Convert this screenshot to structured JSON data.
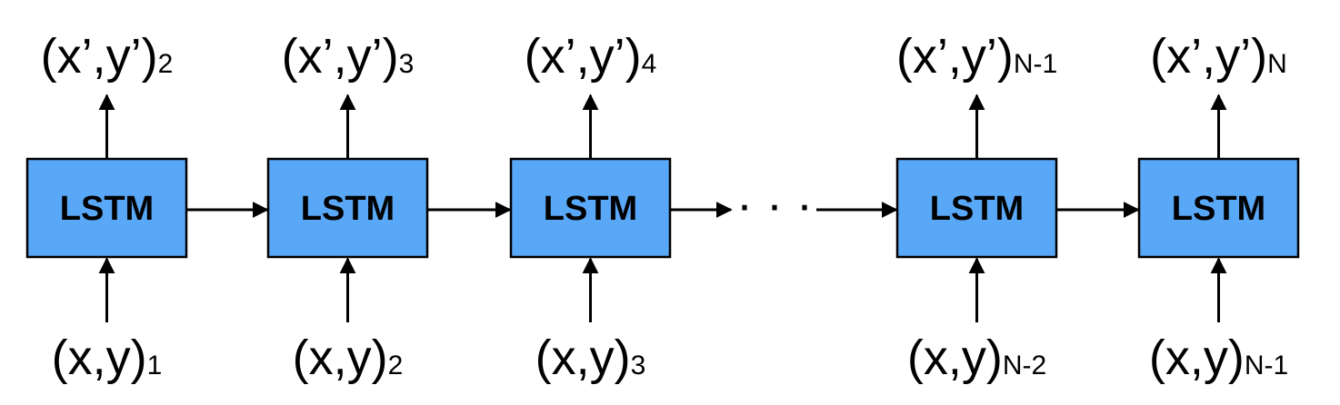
{
  "units": [
    {
      "label": "LSTM",
      "input": {
        "base": "(x,y)",
        "sub": "1"
      },
      "output": {
        "base": "(x’,y’)",
        "sub": "2"
      }
    },
    {
      "label": "LSTM",
      "input": {
        "base": "(x,y)",
        "sub": "2"
      },
      "output": {
        "base": "(x’,y’)",
        "sub": "3"
      }
    },
    {
      "label": "LSTM",
      "input": {
        "base": "(x,y)",
        "sub": "3"
      },
      "output": {
        "base": "(x’,y’)",
        "sub": "4"
      }
    },
    {
      "label": "LSTM",
      "input": {
        "base": "(x,y)",
        "sub": "N-2"
      },
      "output": {
        "base": "(x’,y’)",
        "sub": "N-1"
      }
    },
    {
      "label": "LSTM",
      "input": {
        "base": "(x,y)",
        "sub": "N-1"
      },
      "output": {
        "base": "(x’,y’)",
        "sub": "N"
      }
    }
  ],
  "ellipsis": "· · ·",
  "colors": {
    "box_fill": "#59a7f7",
    "box_stroke": "#000000",
    "text": "#000000"
  }
}
